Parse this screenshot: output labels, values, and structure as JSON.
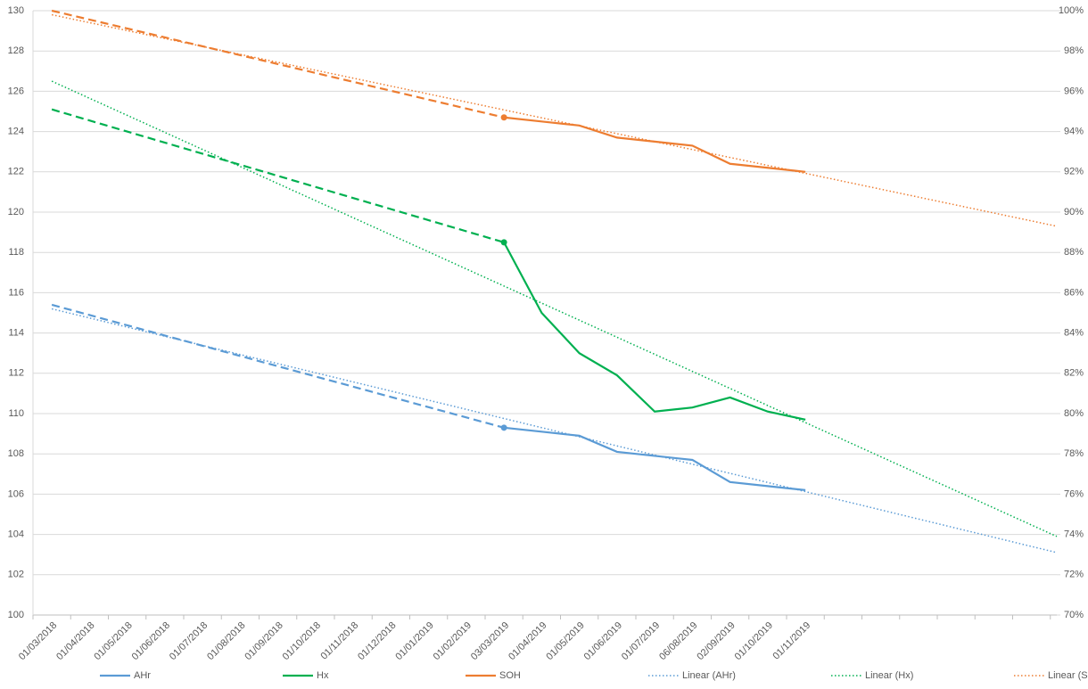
{
  "chart_data": {
    "type": "line",
    "categories": [
      "01/03/2018",
      "01/04/2018",
      "01/05/2018",
      "01/06/2018",
      "01/07/2018",
      "01/08/2018",
      "01/09/2018",
      "01/10/2018",
      "01/11/2018",
      "01/12/2018",
      "01/01/2019",
      "01/02/2019",
      "03/03/2019",
      "01/04/2019",
      "01/05/2019",
      "01/06/2019",
      "01/07/2019",
      "06/08/2019",
      "02/09/2019",
      "01/10/2019",
      "01/11/2019"
    ],
    "ylim": [
      100,
      130
    ],
    "yticks": [
      100,
      102,
      104,
      106,
      108,
      110,
      112,
      114,
      116,
      118,
      120,
      122,
      124,
      126,
      128,
      130
    ],
    "y2lim": [
      70,
      100
    ],
    "y2ticks": [
      {
        "value": 70,
        "label": "70%"
      },
      {
        "value": 72,
        "label": "72%"
      },
      {
        "value": 74,
        "label": "74%"
      },
      {
        "value": 76,
        "label": "76%"
      },
      {
        "value": 78,
        "label": "78%"
      },
      {
        "value": 80,
        "label": "80%"
      },
      {
        "value": 82,
        "label": "82%"
      },
      {
        "value": 84,
        "label": "84%"
      },
      {
        "value": 86,
        "label": "86%"
      },
      {
        "value": 88,
        "label": "88%"
      },
      {
        "value": 90,
        "label": "90%"
      },
      {
        "value": 92,
        "label": "92%"
      },
      {
        "value": 94,
        "label": "94%"
      },
      {
        "value": 96,
        "label": "96%"
      },
      {
        "value": 98,
        "label": "98%"
      },
      {
        "value": 100,
        "label": "100%"
      }
    ],
    "grid": true,
    "gap_style": "dashed",
    "series": [
      {
        "name": "AHr",
        "color": "#5b9bd5",
        "values": [
          115.4,
          null,
          null,
          null,
          null,
          null,
          null,
          null,
          null,
          null,
          null,
          null,
          109.3,
          109.1,
          108.9,
          108.1,
          107.9,
          107.7,
          106.6,
          106.4,
          106.2
        ]
      },
      {
        "name": "Hx",
        "color": "#00b050",
        "values": [
          125.1,
          null,
          null,
          null,
          null,
          null,
          null,
          null,
          null,
          null,
          null,
          null,
          118.5,
          115.0,
          113.0,
          111.9,
          110.1,
          110.3,
          110.8,
          110.1,
          109.7
        ]
      },
      {
        "name": "SOH",
        "color": "#ed7d31",
        "axis": "y2",
        "values": [
          100,
          null,
          null,
          null,
          null,
          null,
          null,
          null,
          null,
          null,
          null,
          null,
          94.7,
          94.5,
          94.3,
          93.7,
          93.5,
          93.3,
          92.4,
          92.2,
          92.0
        ]
      }
    ],
    "trendlines": [
      {
        "name": "Linear (AHr)",
        "color": "#5b9bd5",
        "values": [
          115.2,
          103.1
        ]
      },
      {
        "name": "Linear (Hx)",
        "color": "#00b050",
        "values": [
          126.5,
          103.9
        ]
      },
      {
        "name": "Linear (SOH)",
        "color": "#ed7d31",
        "axis": "y2",
        "values": [
          99.8,
          89.3
        ]
      }
    ]
  }
}
